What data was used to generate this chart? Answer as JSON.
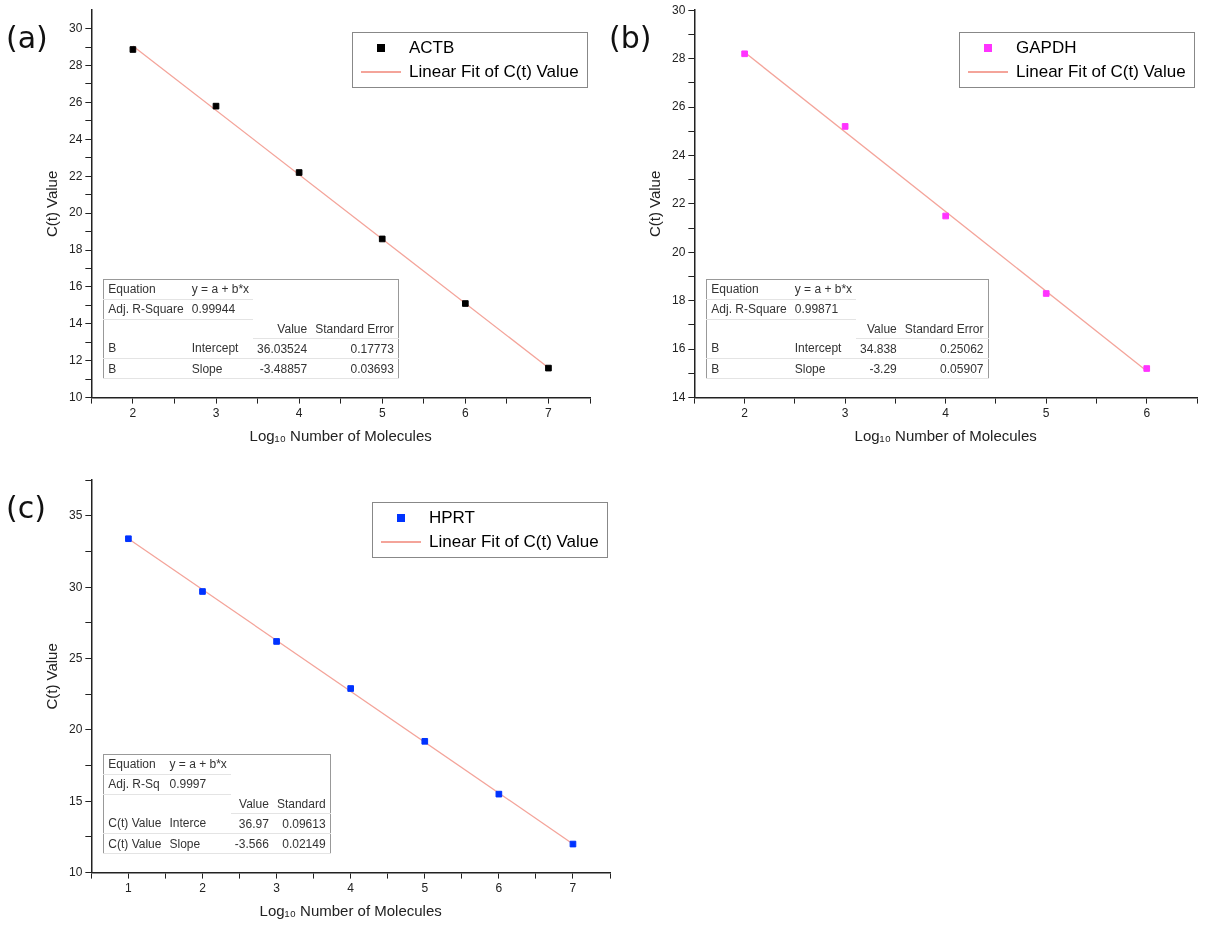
{
  "chart_data": [
    {
      "type": "scatter",
      "title": "(a)",
      "xlabel": "Log₁₀ Number of Molecules",
      "ylabel": "C(t) Value",
      "x": [
        2,
        3,
        4,
        5,
        6,
        7
      ],
      "series": [
        {
          "name": "ACTB",
          "color": "#000000",
          "values": [
            28.87,
            25.8,
            22.2,
            18.6,
            15.1,
            11.6
          ]
        },
        {
          "name": "Linear Fit of C(t) Value",
          "type": "line",
          "marker": "none",
          "color": "#f4a49a",
          "x": [
            2,
            7
          ],
          "values": [
            29.06,
            11.62
          ]
        }
      ],
      "xlim": [
        1.5,
        7.5
      ],
      "xticks": [
        {
          "value": 1.5,
          "label": null
        },
        2,
        {
          "value": 2.5,
          "label": null
        },
        3,
        {
          "value": 3.5,
          "label": null
        },
        4,
        {
          "value": 4.5,
          "label": null
        },
        5,
        {
          "value": 5.5,
          "label": null
        },
        6,
        {
          "value": 6.5,
          "label": null
        },
        7,
        {
          "value": 7.5,
          "label": null
        }
      ],
      "ylim": [
        10,
        31
      ],
      "yticks": [
        10,
        {
          "value": 11,
          "label": null
        },
        12,
        {
          "value": 13,
          "label": null
        },
        14,
        {
          "value": 15,
          "label": null
        },
        16,
        {
          "value": 17,
          "label": null
        },
        18,
        {
          "value": 19,
          "label": null
        },
        20,
        {
          "value": 21,
          "label": null
        },
        22,
        {
          "value": 23,
          "label": null
        },
        24,
        {
          "value": 25,
          "label": null
        },
        26,
        {
          "value": 27,
          "label": null
        },
        28,
        {
          "value": 29,
          "label": null
        },
        30
      ],
      "marker": "square",
      "legend": "top right",
      "grid": false,
      "annotations": [
        "Equation",
        "y = a + b*x",
        "Adj. R-Square",
        "0.99944",
        "Value",
        "Standard Error",
        "B",
        "Intercept",
        "36.03524",
        "0.17773",
        "B",
        "Slope",
        "-3.48857",
        "0.03693"
      ]
    },
    {
      "type": "scatter",
      "title": "(b)",
      "xlabel": "Log₁₀ Number of Molecules",
      "ylabel": "C(t) Value",
      "x": [
        2,
        3,
        4,
        5,
        6
      ],
      "series": [
        {
          "name": "GAPDH",
          "color": "#ff33ff",
          "values": [
            28.2,
            25.2,
            21.5,
            18.3,
            15.2
          ]
        },
        {
          "name": "Linear Fit of C(t) Value",
          "type": "line",
          "marker": "none",
          "color": "#f4a49a",
          "x": [
            2,
            6
          ],
          "values": [
            28.26,
            15.1
          ]
        }
      ],
      "xlim": [
        1.5,
        6.5
      ],
      "xticks": [
        {
          "value": 1.5,
          "label": null
        },
        2,
        {
          "value": 2.5,
          "label": null
        },
        3,
        {
          "value": 3.5,
          "label": null
        },
        4,
        {
          "value": 4.5,
          "label": null
        },
        5,
        {
          "value": 5.5,
          "label": null
        },
        6,
        {
          "value": 6.5,
          "label": null
        }
      ],
      "ylim": [
        14,
        30
      ],
      "yticks": [
        14,
        {
          "value": 15,
          "label": null
        },
        16,
        {
          "value": 17,
          "label": null
        },
        18,
        {
          "value": 19,
          "label": null
        },
        20,
        {
          "value": 21,
          "label": null
        },
        22,
        {
          "value": 23,
          "label": null
        },
        24,
        {
          "value": 25,
          "label": null
        },
        26,
        {
          "value": 27,
          "label": null
        },
        28,
        {
          "value": 29,
          "label": null
        },
        30
      ],
      "marker": "square",
      "legend": "top right",
      "grid": false,
      "annotations": [
        "Equation",
        "y = a + b*x",
        "Adj. R-Square",
        "0.99871",
        "Value",
        "Standard Error",
        "B",
        "Intercept",
        "34.838",
        "0.25062",
        "B",
        "Slope",
        "-3.29",
        "0.05907"
      ]
    },
    {
      "type": "scatter",
      "title": "(c)",
      "xlabel": "Log₁₀ Number of Molecules",
      "ylabel": "C(t) Value",
      "x": [
        1,
        2,
        3,
        4,
        5,
        6,
        7
      ],
      "series": [
        {
          "name": "HPRT",
          "color": "#0033ff",
          "values": [
            33.4,
            29.7,
            26.2,
            22.9,
            19.2,
            15.5,
            12.0
          ]
        },
        {
          "name": "Linear Fit of C(t) Value",
          "type": "line",
          "marker": "none",
          "color": "#f4a49a",
          "x": [
            1,
            7
          ],
          "values": [
            33.4,
            12.01
          ]
        }
      ],
      "xlim": [
        0.5,
        7.5
      ],
      "xticks": [
        {
          "value": 0.5,
          "label": null
        },
        1,
        {
          "value": 1.5,
          "label": null
        },
        2,
        {
          "value": 2.5,
          "label": null
        },
        3,
        {
          "value": 3.5,
          "label": null
        },
        4,
        {
          "value": 4.5,
          "label": null
        },
        5,
        {
          "value": 5.5,
          "label": null
        },
        6,
        {
          "value": 6.5,
          "label": null
        },
        7,
        {
          "value": 7.5,
          "label": null
        }
      ],
      "ylim": [
        10,
        37.5
      ],
      "yticks": [
        10,
        {
          "value": 12.5,
          "label": null
        },
        15,
        {
          "value": 17.5,
          "label": null
        },
        20,
        {
          "value": 22.5,
          "label": null
        },
        25,
        {
          "value": 27.5,
          "label": null
        },
        30,
        {
          "value": 32.5,
          "label": null
        },
        35,
        {
          "value": 37.5,
          "label": null
        }
      ],
      "marker": "square",
      "legend": "top right",
      "grid": false,
      "annotations": [
        "Equation",
        "y = a + b*x",
        "Adj. R-Sq",
        "0.9997",
        "Value",
        "Standard",
        "C(t) Value",
        "Interce",
        "36.97",
        "0.09613",
        "C(t) Value",
        "Slope",
        "-3.566",
        "0.02149"
      ]
    }
  ]
}
